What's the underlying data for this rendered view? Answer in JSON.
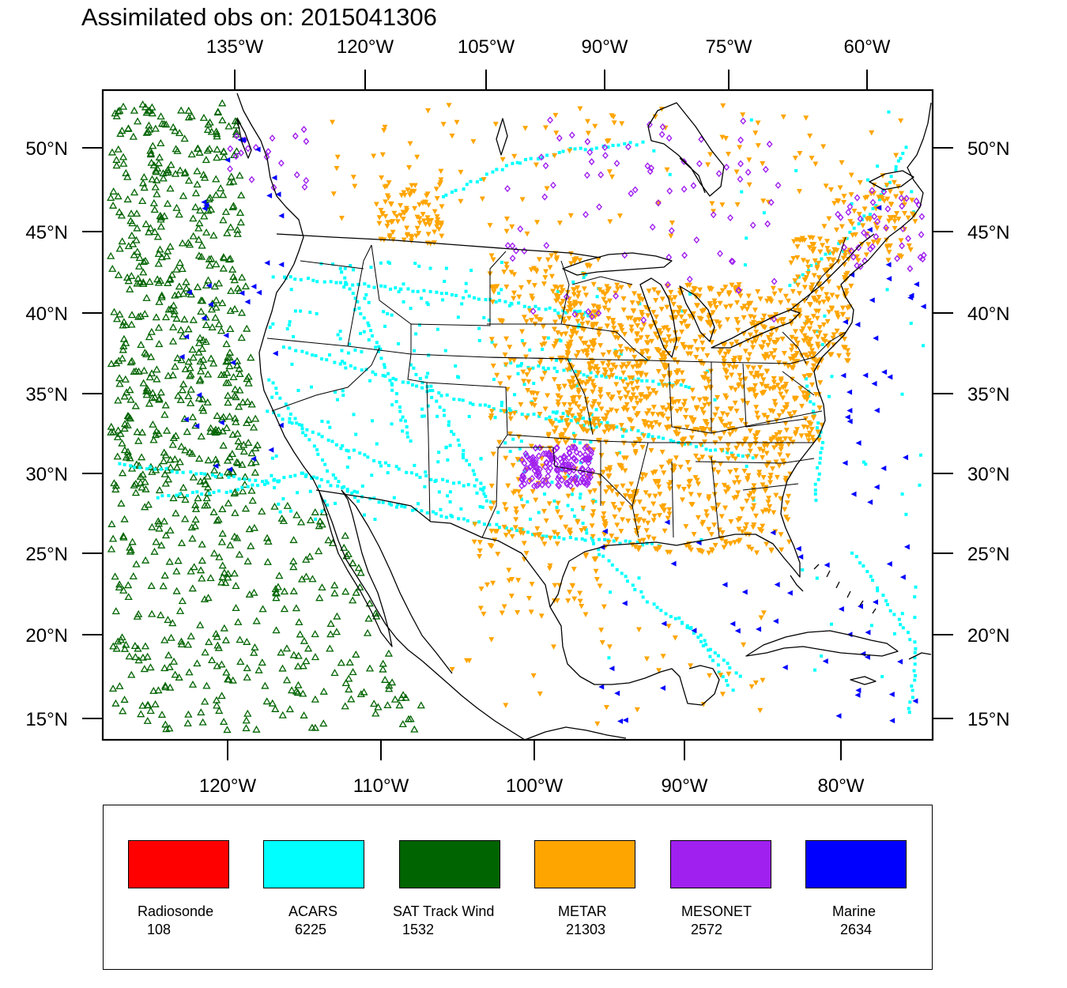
{
  "title": "Assimilated obs on: 2015041306",
  "top_axis": {
    "labels": [
      "135°W",
      "120°W",
      "105°W",
      "90°W",
      "75°W",
      "60°W"
    ]
  },
  "bottom_axis": {
    "labels": [
      "120°W",
      "110°W",
      "100°W",
      "90°W",
      "80°W"
    ]
  },
  "left_axis": {
    "labels": [
      "50°N",
      "45°N",
      "40°N",
      "35°N",
      "30°N",
      "25°N",
      "20°N",
      "15°N"
    ]
  },
  "right_axis": {
    "labels": [
      "50°N",
      "45°N",
      "40°N",
      "35°N",
      "30°N",
      "25°N",
      "20°N",
      "15°N"
    ]
  },
  "legend": [
    {
      "label": "Radiosonde",
      "count": "108",
      "color": "#ff0000",
      "symbol": "circle"
    },
    {
      "label": "ACARS",
      "count": "6225",
      "color": "#00ffff",
      "symbol": "square"
    },
    {
      "label": "SAT Track Wind",
      "count": "1532",
      "color": "#006400",
      "symbol": "triangle-up"
    },
    {
      "label": "METAR",
      "count": "21303",
      "color": "#ffa500",
      "symbol": "triangle-down"
    },
    {
      "label": "MESONET",
      "count": "2572",
      "color": "#a020f0",
      "symbol": "diamond"
    },
    {
      "label": "Marine",
      "count": "2634",
      "color": "#0000ff",
      "symbol": "triangle-left"
    }
  ],
  "map": {
    "projection": "lambert-conformal",
    "region": "North America (CONUS, Gulf of Mexico, Caribbean)",
    "frame_color": "#000000",
    "coastline_color": "#000000"
  }
}
